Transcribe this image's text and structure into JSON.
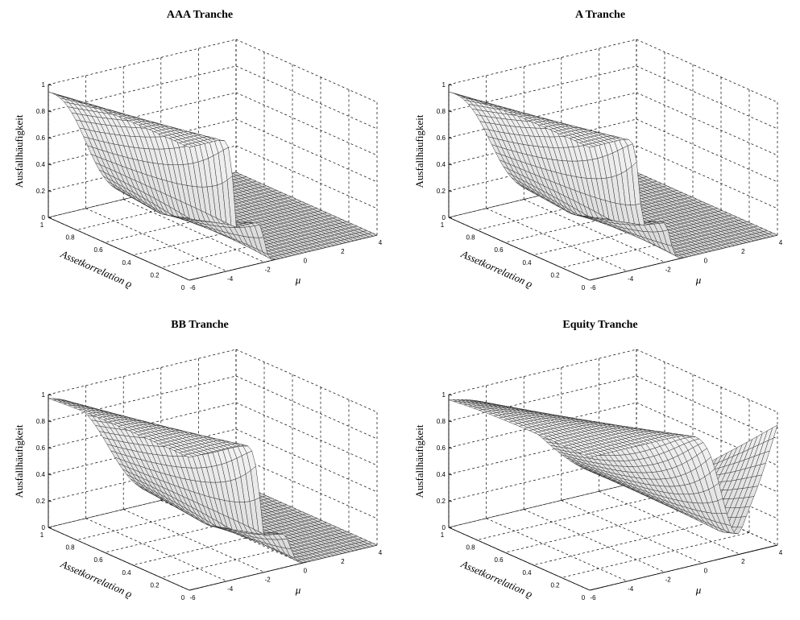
{
  "chart_data": [
    {
      "type": "surface",
      "title": "AAA Tranche",
      "xlabel": "Assetkorrelation ϱ",
      "ylabel": "μ",
      "zlabel": "Ausfallhäufigkeit",
      "xlim": [
        0,
        1
      ],
      "ylim": [
        -6,
        4
      ],
      "zlim": [
        0,
        1
      ],
      "xticks": [
        "0",
        "0.2",
        "0.4",
        "0.6",
        "0.8",
        "1"
      ],
      "yticks": [
        "-6",
        "-4",
        "-2",
        "0",
        "2",
        "4"
      ],
      "zticks": [
        "0",
        "0.2",
        "0.4",
        "0.6",
        "0.8",
        "1"
      ],
      "grid": true,
      "surface": {
        "high": 1.0,
        "low": 0.0,
        "center_at_rho0": -3.6,
        "center_at_rho1": -4.0,
        "width_at_rho0": 0.35,
        "width_at_rho1": 2.0,
        "plateau_level": 0.35
      }
    },
    {
      "type": "surface",
      "title": "A Tranche",
      "xlabel": "Assetkorrelation ϱ",
      "ylabel": "μ",
      "zlabel": "Ausfallhäufigkeit",
      "xlim": [
        0,
        1
      ],
      "ylim": [
        -6,
        4
      ],
      "zlim": [
        0,
        1
      ],
      "xticks": [
        "0",
        "0.2",
        "0.4",
        "0.6",
        "0.8",
        "1"
      ],
      "yticks": [
        "-6",
        "-4",
        "-2",
        "0",
        "2",
        "4"
      ],
      "zticks": [
        "0",
        "0.2",
        "0.4",
        "0.6",
        "0.8",
        "1"
      ],
      "grid": true,
      "surface": {
        "high": 1.0,
        "low": 0.0,
        "center_at_rho0": -3.3,
        "center_at_rho1": -3.8,
        "width_at_rho0": 0.4,
        "width_at_rho1": 2.2,
        "plateau_level": 0.35
      }
    },
    {
      "type": "surface",
      "title": "BB Tranche",
      "xlabel": "Assetkorrelation ϱ",
      "ylabel": "μ",
      "zlabel": "Ausfallhäufigkeit",
      "xlim": [
        0,
        1
      ],
      "ylim": [
        -6,
        4
      ],
      "zlim": [
        0,
        1
      ],
      "xticks": [
        "0",
        "0.2",
        "0.4",
        "0.6",
        "0.8",
        "1"
      ],
      "yticks": [
        "-6",
        "-4",
        "-2",
        "0",
        "2",
        "4"
      ],
      "zticks": [
        "0",
        "0.2",
        "0.4",
        "0.6",
        "0.8",
        "1"
      ],
      "grid": true,
      "surface": {
        "high": 1.0,
        "low": 0.0,
        "center_at_rho0": -2.2,
        "center_at_rho1": -2.8,
        "width_at_rho0": 0.5,
        "width_at_rho1": 2.6,
        "plateau_level": 0.3
      }
    },
    {
      "type": "surface",
      "title": "Equity Tranche",
      "xlabel": "Assetkorrelation ϱ",
      "ylabel": "μ",
      "zlabel": "Ausfallhäufigkeit",
      "xlim": [
        0,
        1
      ],
      "ylim": [
        -6,
        4
      ],
      "zlim": [
        0,
        1
      ],
      "xticks": [
        "0",
        "0.2",
        "0.4",
        "0.6",
        "0.8",
        "1"
      ],
      "yticks": [
        "-6",
        "-4",
        "-2",
        "0",
        "2",
        "4"
      ],
      "zticks": [
        "0",
        "0.2",
        "0.4",
        "0.6",
        "0.8",
        "1"
      ],
      "grid": true,
      "surface": {
        "high": 1.0,
        "low": 0.0,
        "center_at_rho0": 1.0,
        "center_at_rho1": -1.0,
        "width_at_rho0": 1.2,
        "width_at_rho1": 4.5,
        "plateau_level": 0.2,
        "corner_value": 0.9
      }
    }
  ]
}
